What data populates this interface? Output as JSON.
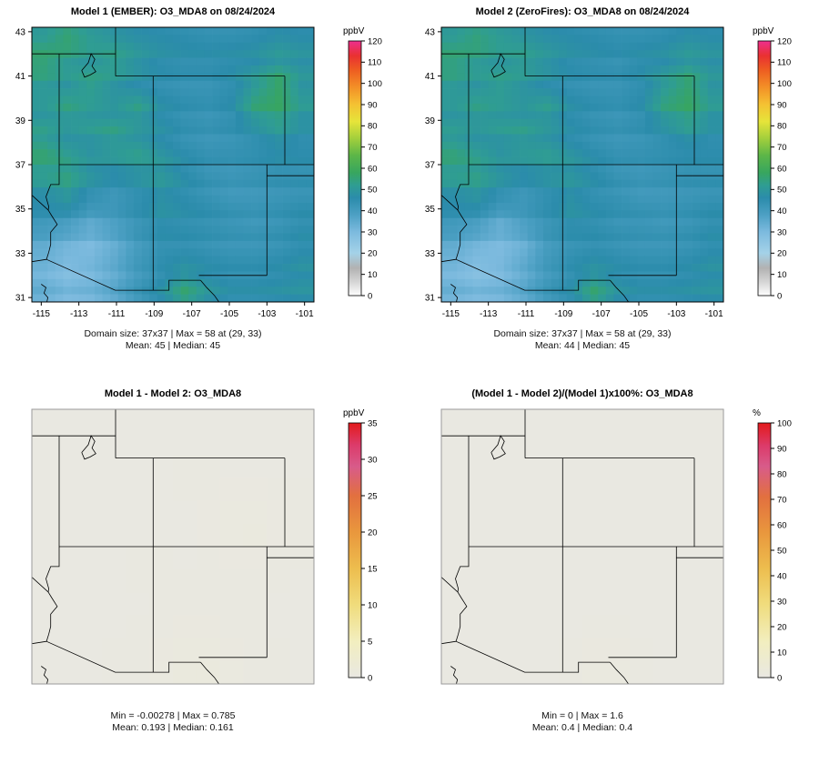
{
  "figure": {
    "background": "#ffffff",
    "border_color": "#000000",
    "state_line_color": "#000000"
  },
  "chart_data": [
    {
      "type": "heatmap",
      "title": "Model 1 (EMBER): O3_MDA8 on 08/24/2024",
      "stats_line1": "Domain size: 37x37 | Max = 58 at (29, 33)",
      "stats_line2": "Mean: 45  |  Median: 45",
      "xlim": [
        -115.5,
        -100.5
      ],
      "ylim": [
        30.8,
        43.2
      ],
      "x_ticks": [
        -115,
        -113,
        -111,
        -109,
        -107,
        -105,
        -103,
        -101
      ],
      "y_ticks": [
        31,
        33,
        35,
        37,
        39,
        41,
        43
      ],
      "show_axis_labels": true,
      "pixel_noise": true,
      "frame_color": "#000000",
      "colorbar": {
        "label": "ppbV",
        "min": 0,
        "max": 120,
        "ticks": [
          0,
          10,
          20,
          30,
          40,
          50,
          60,
          70,
          80,
          90,
          100,
          110,
          120
        ],
        "stops": [
          [
            0,
            "#ffffff"
          ],
          [
            6,
            "#d8d8d8"
          ],
          [
            13,
            "#b2b2b2"
          ],
          [
            20,
            "#a4d2e8"
          ],
          [
            30,
            "#7cbade"
          ],
          [
            38,
            "#4da0c4"
          ],
          [
            46,
            "#2b8cab"
          ],
          [
            52,
            "#2f9d92"
          ],
          [
            58,
            "#38a65e"
          ],
          [
            66,
            "#5cb648"
          ],
          [
            74,
            "#a2cf3c"
          ],
          [
            82,
            "#e6e43a"
          ],
          [
            90,
            "#f4c233"
          ],
          [
            98,
            "#f39127"
          ],
          [
            106,
            "#ee5f21"
          ],
          [
            113,
            "#e93131"
          ],
          [
            120,
            "#ee2f8f"
          ]
        ]
      },
      "grid": [
        [
          52,
          56,
          52,
          50,
          48,
          47,
          46,
          45,
          45,
          46,
          48,
          47
        ],
        [
          56,
          52,
          50,
          53,
          49,
          46,
          45,
          45,
          46,
          47,
          50,
          48
        ],
        [
          52,
          50,
          54,
          50,
          47,
          45,
          44,
          44,
          46,
          52,
          58,
          50
        ],
        [
          49,
          53,
          50,
          48,
          52,
          46,
          44,
          43,
          45,
          54,
          56,
          50
        ],
        [
          52,
          49,
          51,
          53,
          49,
          47,
          44,
          43,
          44,
          47,
          51,
          47
        ],
        [
          55,
          51,
          48,
          50,
          52,
          48,
          45,
          43,
          43,
          44,
          46,
          45
        ],
        [
          52,
          54,
          49,
          46,
          48,
          50,
          46,
          43,
          42,
          43,
          44,
          44
        ],
        [
          47,
          50,
          44,
          42,
          45,
          48,
          46,
          44,
          42,
          42,
          43,
          44
        ],
        [
          42,
          40,
          36,
          39,
          43,
          46,
          45,
          44,
          43,
          42,
          43,
          45
        ],
        [
          36,
          33,
          31,
          35,
          41,
          45,
          45,
          44,
          43,
          43,
          44,
          46
        ],
        [
          31,
          28,
          30,
          34,
          40,
          44,
          47,
          45,
          44,
          44,
          45,
          47
        ],
        [
          34,
          31,
          32,
          36,
          42,
          47,
          55,
          49,
          46,
          46,
          47,
          48
        ]
      ]
    },
    {
      "type": "heatmap",
      "title": "Model 2 (ZeroFires): O3_MDA8 on 08/24/2024",
      "stats_line1": "Domain size: 37x37 | Max = 58 at (29, 33)",
      "stats_line2": "Mean: 44  |  Median: 45",
      "xlim": [
        -115.5,
        -100.5
      ],
      "ylim": [
        30.8,
        43.2
      ],
      "x_ticks": [
        -115,
        -113,
        -111,
        -109,
        -107,
        -105,
        -103,
        -101
      ],
      "y_ticks": [
        31,
        33,
        35,
        37,
        39,
        41,
        43
      ],
      "show_axis_labels": true,
      "pixel_noise": true,
      "frame_color": "#000000",
      "colorbar": {
        "label": "ppbV",
        "min": 0,
        "max": 120,
        "ticks": [
          0,
          10,
          20,
          30,
          40,
          50,
          60,
          70,
          80,
          90,
          100,
          110,
          120
        ],
        "stops": [
          [
            0,
            "#ffffff"
          ],
          [
            6,
            "#d8d8d8"
          ],
          [
            13,
            "#b2b2b2"
          ],
          [
            20,
            "#a4d2e8"
          ],
          [
            30,
            "#7cbade"
          ],
          [
            38,
            "#4da0c4"
          ],
          [
            46,
            "#2b8cab"
          ],
          [
            52,
            "#2f9d92"
          ],
          [
            58,
            "#38a65e"
          ],
          [
            66,
            "#5cb648"
          ],
          [
            74,
            "#a2cf3c"
          ],
          [
            82,
            "#e6e43a"
          ],
          [
            90,
            "#f4c233"
          ],
          [
            98,
            "#f39127"
          ],
          [
            106,
            "#ee5f21"
          ],
          [
            113,
            "#e93131"
          ],
          [
            120,
            "#ee2f8f"
          ]
        ]
      },
      "grid": [
        [
          52,
          55,
          52,
          50,
          48,
          47,
          46,
          45,
          45,
          46,
          48,
          47
        ],
        [
          55,
          52,
          50,
          52,
          49,
          46,
          45,
          44,
          46,
          47,
          50,
          48
        ],
        [
          52,
          50,
          53,
          50,
          47,
          45,
          44,
          44,
          46,
          52,
          57,
          50
        ],
        [
          49,
          52,
          50,
          48,
          51,
          46,
          44,
          43,
          45,
          53,
          56,
          50
        ],
        [
          51,
          49,
          51,
          52,
          49,
          46,
          44,
          43,
          44,
          47,
          51,
          47
        ],
        [
          54,
          51,
          48,
          50,
          51,
          48,
          45,
          43,
          43,
          44,
          45,
          45
        ],
        [
          52,
          53,
          49,
          46,
          48,
          49,
          46,
          43,
          42,
          43,
          44,
          44
        ],
        [
          47,
          49,
          44,
          42,
          45,
          48,
          45,
          44,
          42,
          42,
          43,
          44
        ],
        [
          42,
          40,
          35,
          39,
          43,
          46,
          45,
          43,
          43,
          42,
          43,
          45
        ],
        [
          36,
          33,
          31,
          34,
          41,
          44,
          45,
          44,
          43,
          43,
          44,
          46
        ],
        [
          30,
          27,
          29,
          34,
          40,
          44,
          47,
          45,
          44,
          44,
          45,
          47
        ],
        [
          33,
          31,
          32,
          36,
          42,
          46,
          55,
          48,
          46,
          46,
          47,
          48
        ]
      ]
    },
    {
      "type": "heatmap",
      "title": "Model 1 - Model 2: O3_MDA8",
      "stats_line1": "Min = -0.00278 | Max = 0.785",
      "stats_line2": "Mean: 0.193  |  Median: 0.161",
      "xlim": [
        -115.5,
        -100.5
      ],
      "ylim": [
        30.8,
        43.2
      ],
      "x_ticks": [],
      "y_ticks": [],
      "show_axis_labels": false,
      "pixel_noise": false,
      "frame_color": "#9a9a9a",
      "colorbar": {
        "label": "ppbV",
        "min": 0,
        "max": 35,
        "ticks": [
          0,
          5,
          10,
          15,
          20,
          25,
          30,
          35
        ],
        "stops": [
          [
            0,
            "#e9e8e2"
          ],
          [
            5,
            "#f2eebf"
          ],
          [
            10,
            "#f0dc7c"
          ],
          [
            15,
            "#edbd4e"
          ],
          [
            20,
            "#e9973d"
          ],
          [
            25,
            "#e2703f"
          ],
          [
            29,
            "#d85b8a"
          ],
          [
            32,
            "#dc3b6a"
          ],
          [
            35,
            "#e31a1c"
          ]
        ]
      },
      "grid": [
        [
          0.2,
          0.2,
          0.2,
          0.2,
          0.2,
          0.2
        ],
        [
          0.2,
          0.15,
          0.2,
          0.25,
          0.2,
          0.2
        ],
        [
          0.2,
          0.2,
          0.2,
          0.2,
          0.7,
          0.3
        ],
        [
          0.15,
          0.2,
          0.25,
          0.2,
          0.3,
          0.2
        ],
        [
          0.2,
          0.2,
          0.2,
          0.3,
          0.2,
          0.2
        ],
        [
          0.2,
          0.2,
          0.3,
          0.78,
          0.3,
          0.2
        ]
      ]
    },
    {
      "type": "heatmap",
      "title": "(Model 1 - Model 2)/(Model 1)x100%: O3_MDA8",
      "stats_line1": "Min = 0 | Max = 1.6",
      "stats_line2": "Mean: 0.4  |  Median: 0.4",
      "xlim": [
        -115.5,
        -100.5
      ],
      "ylim": [
        30.8,
        43.2
      ],
      "x_ticks": [],
      "y_ticks": [],
      "show_axis_labels": false,
      "pixel_noise": false,
      "frame_color": "#9a9a9a",
      "colorbar": {
        "label": "%",
        "min": 0,
        "max": 100,
        "ticks": [
          0,
          10,
          20,
          30,
          40,
          50,
          60,
          70,
          80,
          90,
          100
        ],
        "stops": [
          [
            0,
            "#e9e8e2"
          ],
          [
            14,
            "#f2eebf"
          ],
          [
            29,
            "#f0dc7c"
          ],
          [
            43,
            "#edbd4e"
          ],
          [
            57,
            "#e9973d"
          ],
          [
            71,
            "#e2703f"
          ],
          [
            83,
            "#d85b8a"
          ],
          [
            91,
            "#dc3b6a"
          ],
          [
            100,
            "#e31a1c"
          ]
        ]
      },
      "grid": [
        [
          0.4,
          0.4,
          0.4,
          0.4,
          0.4,
          0.4
        ],
        [
          0.4,
          0.4,
          0.4,
          0.4,
          0.4,
          0.4
        ],
        [
          0.4,
          0.4,
          0.4,
          0.4,
          0.5,
          0.4
        ],
        [
          0.4,
          0.4,
          0.4,
          0.4,
          0.4,
          0.4
        ],
        [
          0.4,
          0.4,
          0.4,
          0.5,
          0.4,
          0.4
        ],
        [
          0.4,
          0.4,
          0.5,
          1.6,
          0.5,
          0.4
        ]
      ]
    }
  ]
}
